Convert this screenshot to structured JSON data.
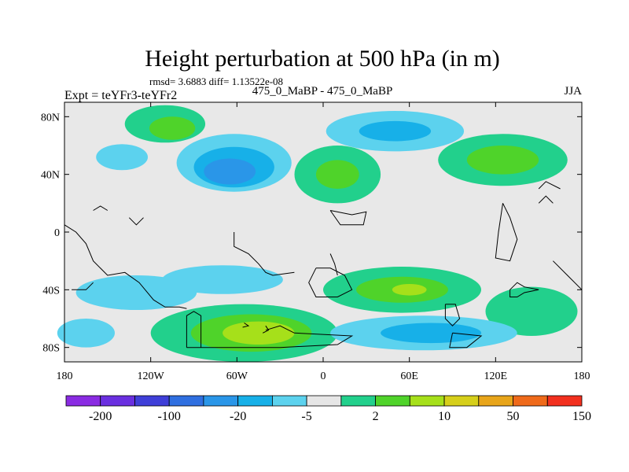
{
  "chart_data": {
    "type": "heatmap",
    "title": "Height perturbation at 500 hPa (in m)",
    "subtitle_stats": "rmsd= 3.6883 diff= 1.13522e-08",
    "left_label": "Expt = teYFr3-teYFr2",
    "center_label": "475_0_MaBP - 475_0_MaBP",
    "right_label": "JJA",
    "x_ticks": [
      {
        "value": -180,
        "label": "180"
      },
      {
        "value": -120,
        "label": "120W"
      },
      {
        "value": -60,
        "label": "60W"
      },
      {
        "value": 0,
        "label": "0"
      },
      {
        "value": 60,
        "label": "60E"
      },
      {
        "value": 120,
        "label": "120E"
      },
      {
        "value": 180,
        "label": "180"
      }
    ],
    "y_ticks": [
      {
        "value": 80,
        "label": "80N"
      },
      {
        "value": 40,
        "label": "40N"
      },
      {
        "value": 0,
        "label": "0"
      },
      {
        "value": -40,
        "label": "40S"
      },
      {
        "value": -80,
        "label": "80S"
      }
    ],
    "xlim": [
      -180,
      180
    ],
    "ylim": [
      -90,
      90
    ],
    "legend_placement": "bottom",
    "colorbar": {
      "colors": [
        "#8a2be2",
        "#6a2fe0",
        "#3f3fd8",
        "#2f6fe0",
        "#2a96e8",
        "#17b0e8",
        "#5cd2ee",
        "#e6e6e6",
        "#22d08c",
        "#4fd32a",
        "#a6e01a",
        "#d6cf1a",
        "#e8a51a",
        "#ef6a1a",
        "#f2301e"
      ],
      "labels": [
        {
          "after_index": 0,
          "text": "-200"
        },
        {
          "after_index": 2,
          "text": "-100"
        },
        {
          "after_index": 4,
          "text": "-20"
        },
        {
          "after_index": 6,
          "text": "-5"
        },
        {
          "after_index": 8,
          "text": "2"
        },
        {
          "after_index": 10,
          "text": "10"
        },
        {
          "after_index": 12,
          "text": "50"
        },
        {
          "after_index": 14,
          "text": "150"
        }
      ]
    },
    "background_color": "#e8e8e8",
    "anomaly_regions": [
      {
        "lon": -140,
        "lat": 52,
        "rlon": 18,
        "rlat": 9,
        "level": 6
      },
      {
        "lon": -110,
        "lat": 75,
        "rlon": 28,
        "rlat": 13,
        "level": 8
      },
      {
        "lon": -105,
        "lat": 72,
        "rlon": 16,
        "rlat": 8,
        "level": 9
      },
      {
        "lon": -62,
        "lat": 48,
        "rlon": 40,
        "rlat": 20,
        "level": 6
      },
      {
        "lon": -62,
        "lat": 45,
        "rlon": 28,
        "rlat": 14,
        "level": 5
      },
      {
        "lon": -65,
        "lat": 42,
        "rlon": 18,
        "rlat": 9,
        "level": 4
      },
      {
        "lon": 10,
        "lat": 40,
        "rlon": 30,
        "rlat": 20,
        "level": 8
      },
      {
        "lon": 10,
        "lat": 40,
        "rlon": 15,
        "rlat": 10,
        "level": 9
      },
      {
        "lon": 50,
        "lat": 70,
        "rlon": 48,
        "rlat": 14,
        "level": 6
      },
      {
        "lon": 50,
        "lat": 70,
        "rlon": 25,
        "rlat": 7,
        "level": 5
      },
      {
        "lon": 125,
        "lat": 50,
        "rlon": 45,
        "rlat": 18,
        "level": 8
      },
      {
        "lon": 125,
        "lat": 50,
        "rlon": 25,
        "rlat": 10,
        "level": 9
      },
      {
        "lon": -130,
        "lat": -42,
        "rlon": 42,
        "rlat": 12,
        "level": 6
      },
      {
        "lon": -70,
        "lat": -33,
        "rlon": 42,
        "rlat": 10,
        "level": 6
      },
      {
        "lon": 55,
        "lat": -40,
        "rlon": 55,
        "rlat": 16,
        "level": 8
      },
      {
        "lon": 55,
        "lat": -40,
        "rlon": 32,
        "rlat": 9,
        "level": 9
      },
      {
        "lon": 60,
        "lat": -40,
        "rlon": 12,
        "rlat": 4,
        "level": 10
      },
      {
        "lon": 145,
        "lat": -55,
        "rlon": 32,
        "rlat": 17,
        "level": 8
      },
      {
        "lon": -55,
        "lat": -70,
        "rlon": 65,
        "rlat": 20,
        "level": 8
      },
      {
        "lon": -50,
        "lat": -70,
        "rlon": 42,
        "rlat": 13,
        "level": 9
      },
      {
        "lon": -45,
        "lat": -70,
        "rlon": 25,
        "rlat": 8,
        "level": 10
      },
      {
        "lon": 70,
        "lat": -70,
        "rlon": 65,
        "rlat": 12,
        "level": 6
      },
      {
        "lon": 75,
        "lat": -70,
        "rlon": 35,
        "rlat": 7,
        "level": 5
      },
      {
        "lon": -165,
        "lat": -70,
        "rlon": 20,
        "rlat": 10,
        "level": 6
      }
    ],
    "coastlines": [
      [
        [
          -180,
          5
        ],
        [
          -172,
          0
        ],
        [
          -165,
          -8
        ],
        [
          -160,
          -20
        ],
        [
          -150,
          -30
        ],
        [
          -138,
          -28
        ],
        [
          -128,
          -35
        ],
        [
          -118,
          -47
        ],
        [
          -110,
          -52
        ],
        [
          -100,
          -52
        ],
        [
          -95,
          -53
        ]
      ],
      [
        [
          -62,
          0
        ],
        [
          -62,
          -10
        ],
        [
          -52,
          -15
        ],
        [
          -45,
          -22
        ],
        [
          -40,
          -28
        ],
        [
          -35,
          -30
        ],
        [
          -20,
          -28
        ]
      ],
      [
        [
          -175,
          -40
        ],
        [
          -165,
          -40
        ],
        [
          -160,
          -35
        ]
      ],
      [
        [
          -95,
          -80
        ],
        [
          -95,
          -58
        ],
        [
          -90,
          -55
        ],
        [
          -85,
          -58
        ],
        [
          -85,
          -80
        ]
      ],
      [
        [
          -95,
          -80
        ],
        [
          -30,
          -80
        ],
        [
          10,
          -78
        ],
        [
          20,
          -72
        ],
        [
          -20,
          -70
        ],
        [
          -30,
          -65
        ],
        [
          -40,
          -68
        ]
      ],
      [
        [
          -55,
          -63
        ],
        [
          -52,
          -65
        ],
        [
          -56,
          -66
        ]
      ],
      [
        [
          -40,
          -65
        ],
        [
          -38,
          -68
        ],
        [
          -42,
          -70
        ]
      ],
      [
        [
          -5,
          -25
        ],
        [
          5,
          -25
        ],
        [
          15,
          -30
        ],
        [
          20,
          -40
        ],
        [
          10,
          -45
        ],
        [
          -5,
          -45
        ],
        [
          -10,
          -35
        ],
        [
          -5,
          -25
        ]
      ],
      [
        [
          5,
          -15
        ],
        [
          8,
          -22
        ],
        [
          10,
          -30
        ]
      ],
      [
        [
          85,
          -50
        ],
        [
          92,
          -50
        ],
        [
          95,
          -60
        ],
        [
          90,
          -65
        ],
        [
          85,
          -60
        ],
        [
          85,
          -50
        ]
      ],
      [
        [
          90,
          -70
        ],
        [
          110,
          -72
        ],
        [
          100,
          -80
        ],
        [
          88,
          -80
        ],
        [
          90,
          -70
        ]
      ],
      [
        [
          5,
          15
        ],
        [
          20,
          12
        ],
        [
          30,
          14
        ],
        [
          28,
          5
        ],
        [
          12,
          5
        ],
        [
          5,
          15
        ]
      ],
      [
        [
          125,
          20
        ],
        [
          130,
          10
        ],
        [
          135,
          -5
        ],
        [
          130,
          -20
        ],
        [
          120,
          -18
        ],
        [
          122,
          0
        ],
        [
          125,
          20
        ]
      ],
      [
        [
          150,
          20
        ],
        [
          155,
          25
        ],
        [
          160,
          20
        ]
      ],
      [
        [
          150,
          30
        ],
        [
          155,
          35
        ],
        [
          165,
          30
        ]
      ],
      [
        [
          160,
          -20
        ],
        [
          170,
          -30
        ],
        [
          180,
          -40
        ]
      ],
      [
        [
          150,
          -40
        ],
        [
          140,
          -42
        ],
        [
          135,
          -45
        ],
        [
          130,
          -45
        ],
        [
          130,
          -40
        ],
        [
          135,
          -35
        ],
        [
          140,
          -38
        ],
        [
          150,
          -40
        ]
      ],
      [
        [
          -135,
          10
        ],
        [
          -130,
          5
        ],
        [
          -125,
          10
        ]
      ],
      [
        [
          -160,
          15
        ],
        [
          -155,
          18
        ],
        [
          -150,
          15
        ]
      ]
    ]
  }
}
